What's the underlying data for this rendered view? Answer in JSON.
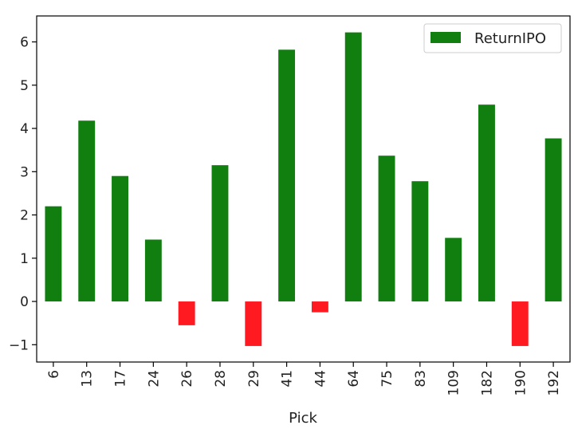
{
  "chart_data": {
    "type": "bar",
    "title": "",
    "xlabel": "Pick",
    "ylabel": "",
    "categories": [
      "6",
      "13",
      "17",
      "24",
      "26",
      "28",
      "29",
      "41",
      "44",
      "64",
      "75",
      "83",
      "109",
      "182",
      "190",
      "192"
    ],
    "series": [
      {
        "name": "ReturnIPO",
        "values": [
          2.2,
          4.18,
          2.9,
          1.43,
          -0.55,
          3.15,
          -1.03,
          5.82,
          -0.25,
          6.22,
          3.37,
          2.78,
          1.47,
          4.55,
          -1.03,
          3.77
        ]
      }
    ],
    "ylim": [
      -1.4,
      6.6
    ],
    "yticks": [
      -1,
      0,
      1,
      2,
      3,
      4,
      5,
      6
    ],
    "colors": {
      "positive": "#107f10",
      "negative": "#ff1a22"
    },
    "legend": "top-right",
    "grid": false
  }
}
